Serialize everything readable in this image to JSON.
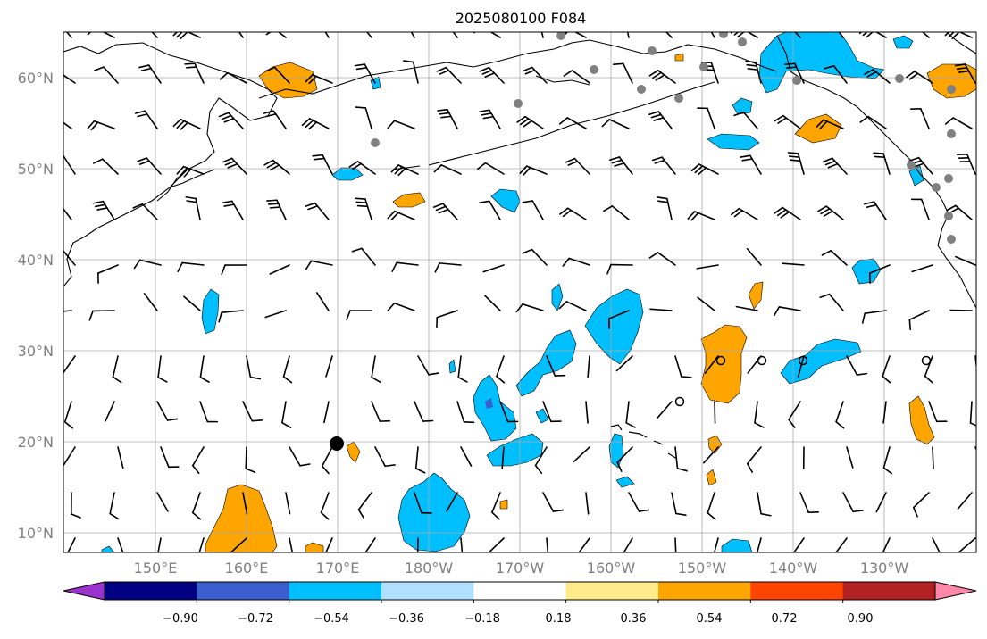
{
  "title": "2025080100 F084",
  "lat_labels": [
    "60°N",
    "50°N",
    "40°N",
    "30°N",
    "20°N",
    "10°N"
  ],
  "lon_labels": [
    "150°E",
    "160°E",
    "170°E",
    "180°W",
    "170°W",
    "160°W",
    "150°W",
    "140°W",
    "130°W"
  ],
  "colorbar": {
    "ticks": [
      "−0.90",
      "−0.72",
      "−0.54",
      "−0.36",
      "−0.18",
      "0.18",
      "0.36",
      "0.54",
      "0.72",
      "0.90"
    ],
    "colors": [
      "#9933cc",
      "#000080",
      "#3a5fcd",
      "#00bfff",
      "#b0e0ff",
      "#ffffff",
      "#ffeb8a",
      "#ffa500",
      "#ff4500",
      "#b22222",
      "#ff88aa"
    ]
  },
  "colors": {
    "positive_field": "#ffa500",
    "negative_field": "#00bfff",
    "station_gray": "#808080",
    "grid": "#aaaaaa",
    "barb": "#000000"
  }
}
